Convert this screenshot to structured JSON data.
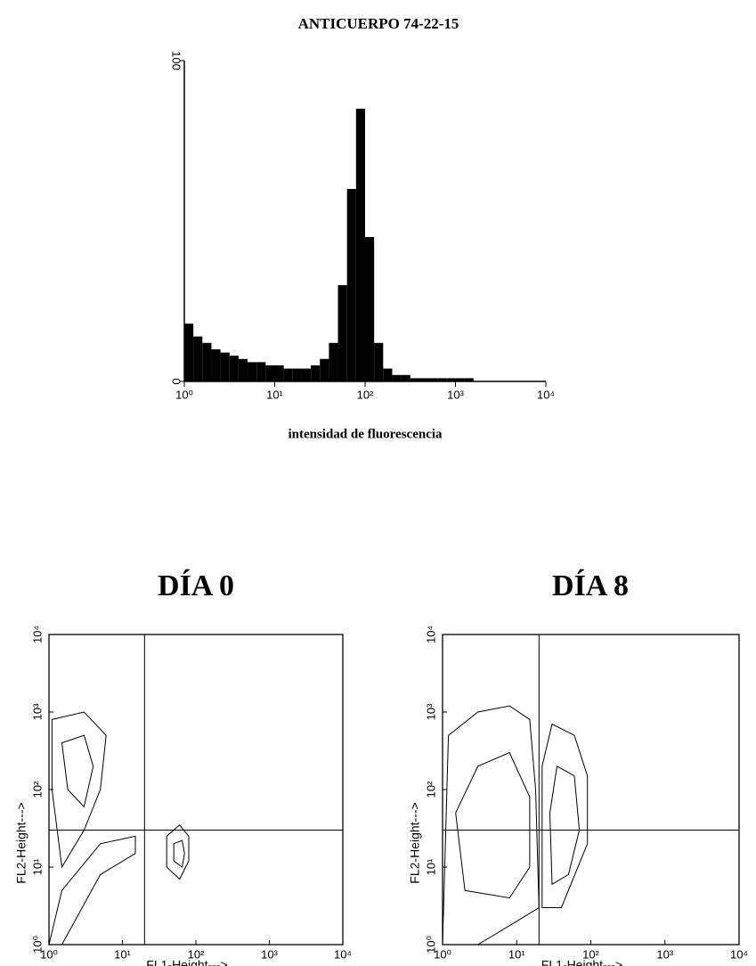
{
  "chart_data": [
    {
      "type": "histogram",
      "title": "ANTICUERPO 74-22-15",
      "xlabel": "intensidad de fluorescencia",
      "xscale": "log",
      "xlim": [
        1,
        10000
      ],
      "ylim": [
        0,
        100
      ],
      "color": "#000000",
      "xticks": [
        {
          "value": 1,
          "label": "10⁰"
        },
        {
          "value": 10,
          "label": "10¹"
        },
        {
          "value": 100,
          "label": "10²"
        },
        {
          "value": 1000,
          "label": "10³"
        },
        {
          "value": 10000,
          "label": "10⁴"
        }
      ],
      "yticks": [
        0,
        100
      ],
      "bins": [
        1,
        1.259,
        1.585,
        1.995,
        2.512,
        3.162,
        3.981,
        5.012,
        6.31,
        7.943,
        10,
        12.59,
        15.85,
        19.95,
        25.12,
        31.62,
        39.81,
        50.12,
        63.1,
        79.43,
        100,
        125.9,
        158.5,
        199.5,
        251.2,
        316.2,
        398.1,
        501.2,
        631,
        794.3,
        1000,
        1259,
        1585,
        1995,
        2512,
        3162,
        3981,
        5012,
        6310,
        7943,
        10000
      ],
      "counts": [
        18,
        14,
        12,
        10,
        9,
        8,
        7,
        6,
        6,
        5,
        5,
        4,
        4,
        4,
        5,
        7,
        12,
        30,
        60,
        85,
        45,
        12,
        4,
        2,
        2,
        1,
        1,
        1,
        1,
        1,
        1,
        1,
        0,
        0,
        0,
        0,
        0,
        0,
        0,
        0
      ]
    },
    {
      "type": "contour",
      "title": "DÍA 0",
      "xlabel": "FL1-Height--->",
      "ylabel": "FL2-Height--->",
      "xscale": "log",
      "yscale": "log",
      "xlim": [
        1,
        10000
      ],
      "ylim": [
        1,
        10000
      ],
      "xticks": [
        {
          "value": 1,
          "label": "10⁰"
        },
        {
          "value": 10,
          "label": "10¹"
        },
        {
          "value": 100,
          "label": "10²"
        },
        {
          "value": 1000,
          "label": "10³"
        },
        {
          "value": 10000,
          "label": "10⁴"
        }
      ],
      "yticks": [
        {
          "value": 1,
          "label": "10⁰"
        },
        {
          "value": 10,
          "label": "10¹"
        },
        {
          "value": 100,
          "label": "10²"
        },
        {
          "value": 1000,
          "label": "10³"
        },
        {
          "value": 10000,
          "label": "10⁴"
        }
      ],
      "quadrant_x": 20,
      "quadrant_y": 30,
      "contours": [
        {
          "x": [
            1.1,
            3,
            6,
            5,
            3,
            1.5,
            1.1
          ],
          "y": [
            800,
            1000,
            500,
            100,
            30,
            10,
            100
          ]
        },
        {
          "x": [
            1.5,
            3,
            4,
            3,
            1.8
          ],
          "y": [
            400,
            500,
            200,
            60,
            100
          ]
        },
        {
          "x": [
            1,
            1.5,
            5,
            15,
            15,
            5,
            1.5
          ],
          "y": [
            1,
            1,
            8,
            15,
            25,
            20,
            5
          ]
        },
        {
          "x": [
            40,
            60,
            80,
            80,
            60,
            40
          ],
          "y": [
            10,
            7,
            12,
            25,
            35,
            25
          ]
        },
        {
          "x": [
            50,
            65,
            70,
            65,
            50
          ],
          "y": [
            12,
            10,
            15,
            22,
            20
          ]
        }
      ]
    },
    {
      "type": "contour",
      "title": "DÍA 8",
      "xlabel": "FL1-Height--->",
      "ylabel": "FL2-Height--->",
      "xscale": "log",
      "yscale": "log",
      "xlim": [
        1,
        10000
      ],
      "ylim": [
        1,
        10000
      ],
      "xticks": [
        {
          "value": 1,
          "label": "10⁰"
        },
        {
          "value": 10,
          "label": "10¹"
        },
        {
          "value": 100,
          "label": "10²"
        },
        {
          "value": 1000,
          "label": "10³"
        },
        {
          "value": 10000,
          "label": "10⁴"
        }
      ],
      "yticks": [
        {
          "value": 1,
          "label": "10⁰"
        },
        {
          "value": 10,
          "label": "10¹"
        },
        {
          "value": 100,
          "label": "10²"
        },
        {
          "value": 1000,
          "label": "10³"
        },
        {
          "value": 10000,
          "label": "10⁴"
        }
      ],
      "quadrant_x": 20,
      "quadrant_y": 30,
      "contours": [
        {
          "x": [
            1,
            3,
            10,
            20,
            18,
            15,
            8,
            3,
            1.2
          ],
          "y": [
            1,
            1,
            2,
            3,
            100,
            800,
            1200,
            1000,
            500
          ]
        },
        {
          "x": [
            2,
            8,
            15,
            15,
            8,
            3,
            1.5
          ],
          "y": [
            5,
            4,
            10,
            80,
            300,
            200,
            50
          ]
        },
        {
          "x": [
            22,
            40,
            90,
            90,
            60,
            30,
            22
          ],
          "y": [
            3,
            3,
            20,
            150,
            500,
            700,
            200
          ]
        },
        {
          "x": [
            30,
            50,
            70,
            60,
            35,
            28
          ],
          "y": [
            6,
            8,
            30,
            150,
            200,
            50
          ]
        }
      ]
    }
  ]
}
